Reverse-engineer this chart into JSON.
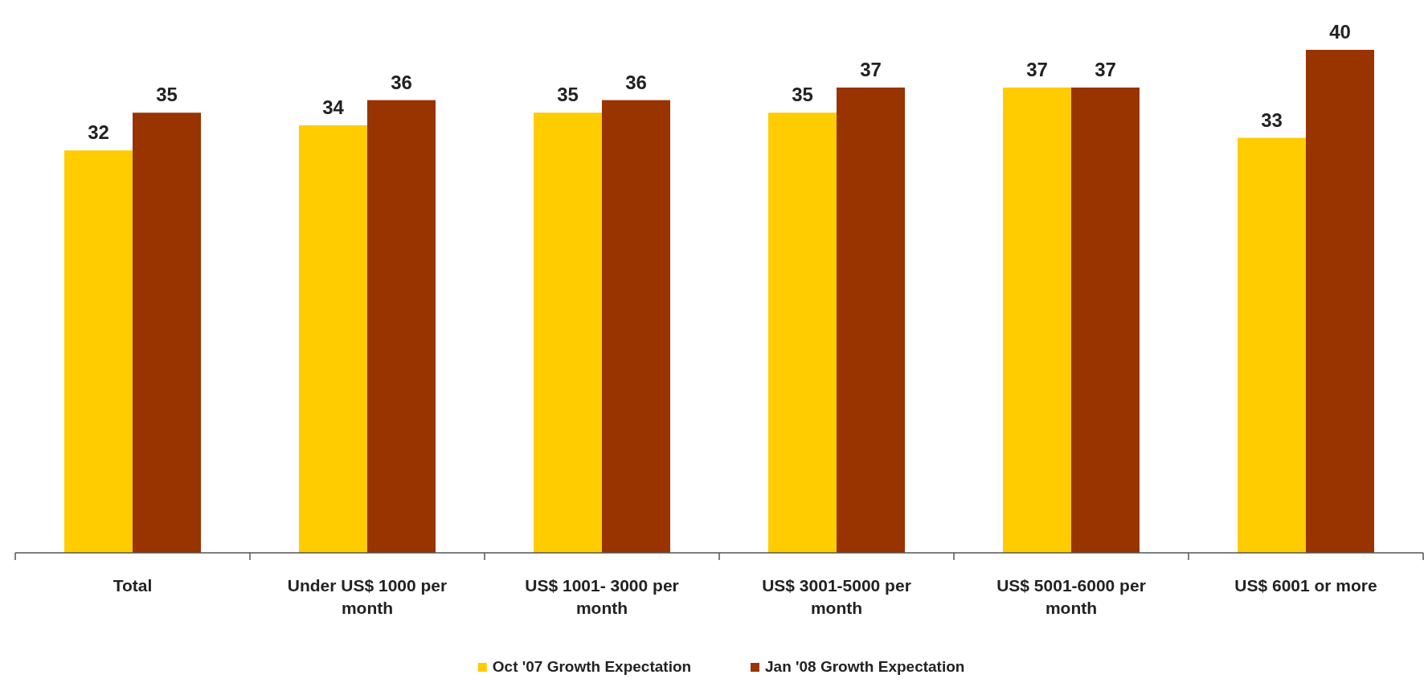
{
  "chart_data": {
    "type": "bar",
    "categories": [
      "Total",
      "Under US$ 1000 per month",
      "US$ 1001- 3000 per month",
      "US$ 3001-5000 per month",
      "US$ 5001-6000 per month",
      "US$ 6001 or more"
    ],
    "series": [
      {
        "name": "Oct '07 Growth Expectation",
        "color": "#ffcc00",
        "values": [
          32,
          34,
          35,
          35,
          37,
          33
        ]
      },
      {
        "name": "Jan '08 Growth Expectation",
        "color": "#993300",
        "values": [
          35,
          36,
          36,
          37,
          37,
          40
        ]
      }
    ],
    "data_labels": true,
    "legend": "bottom"
  }
}
